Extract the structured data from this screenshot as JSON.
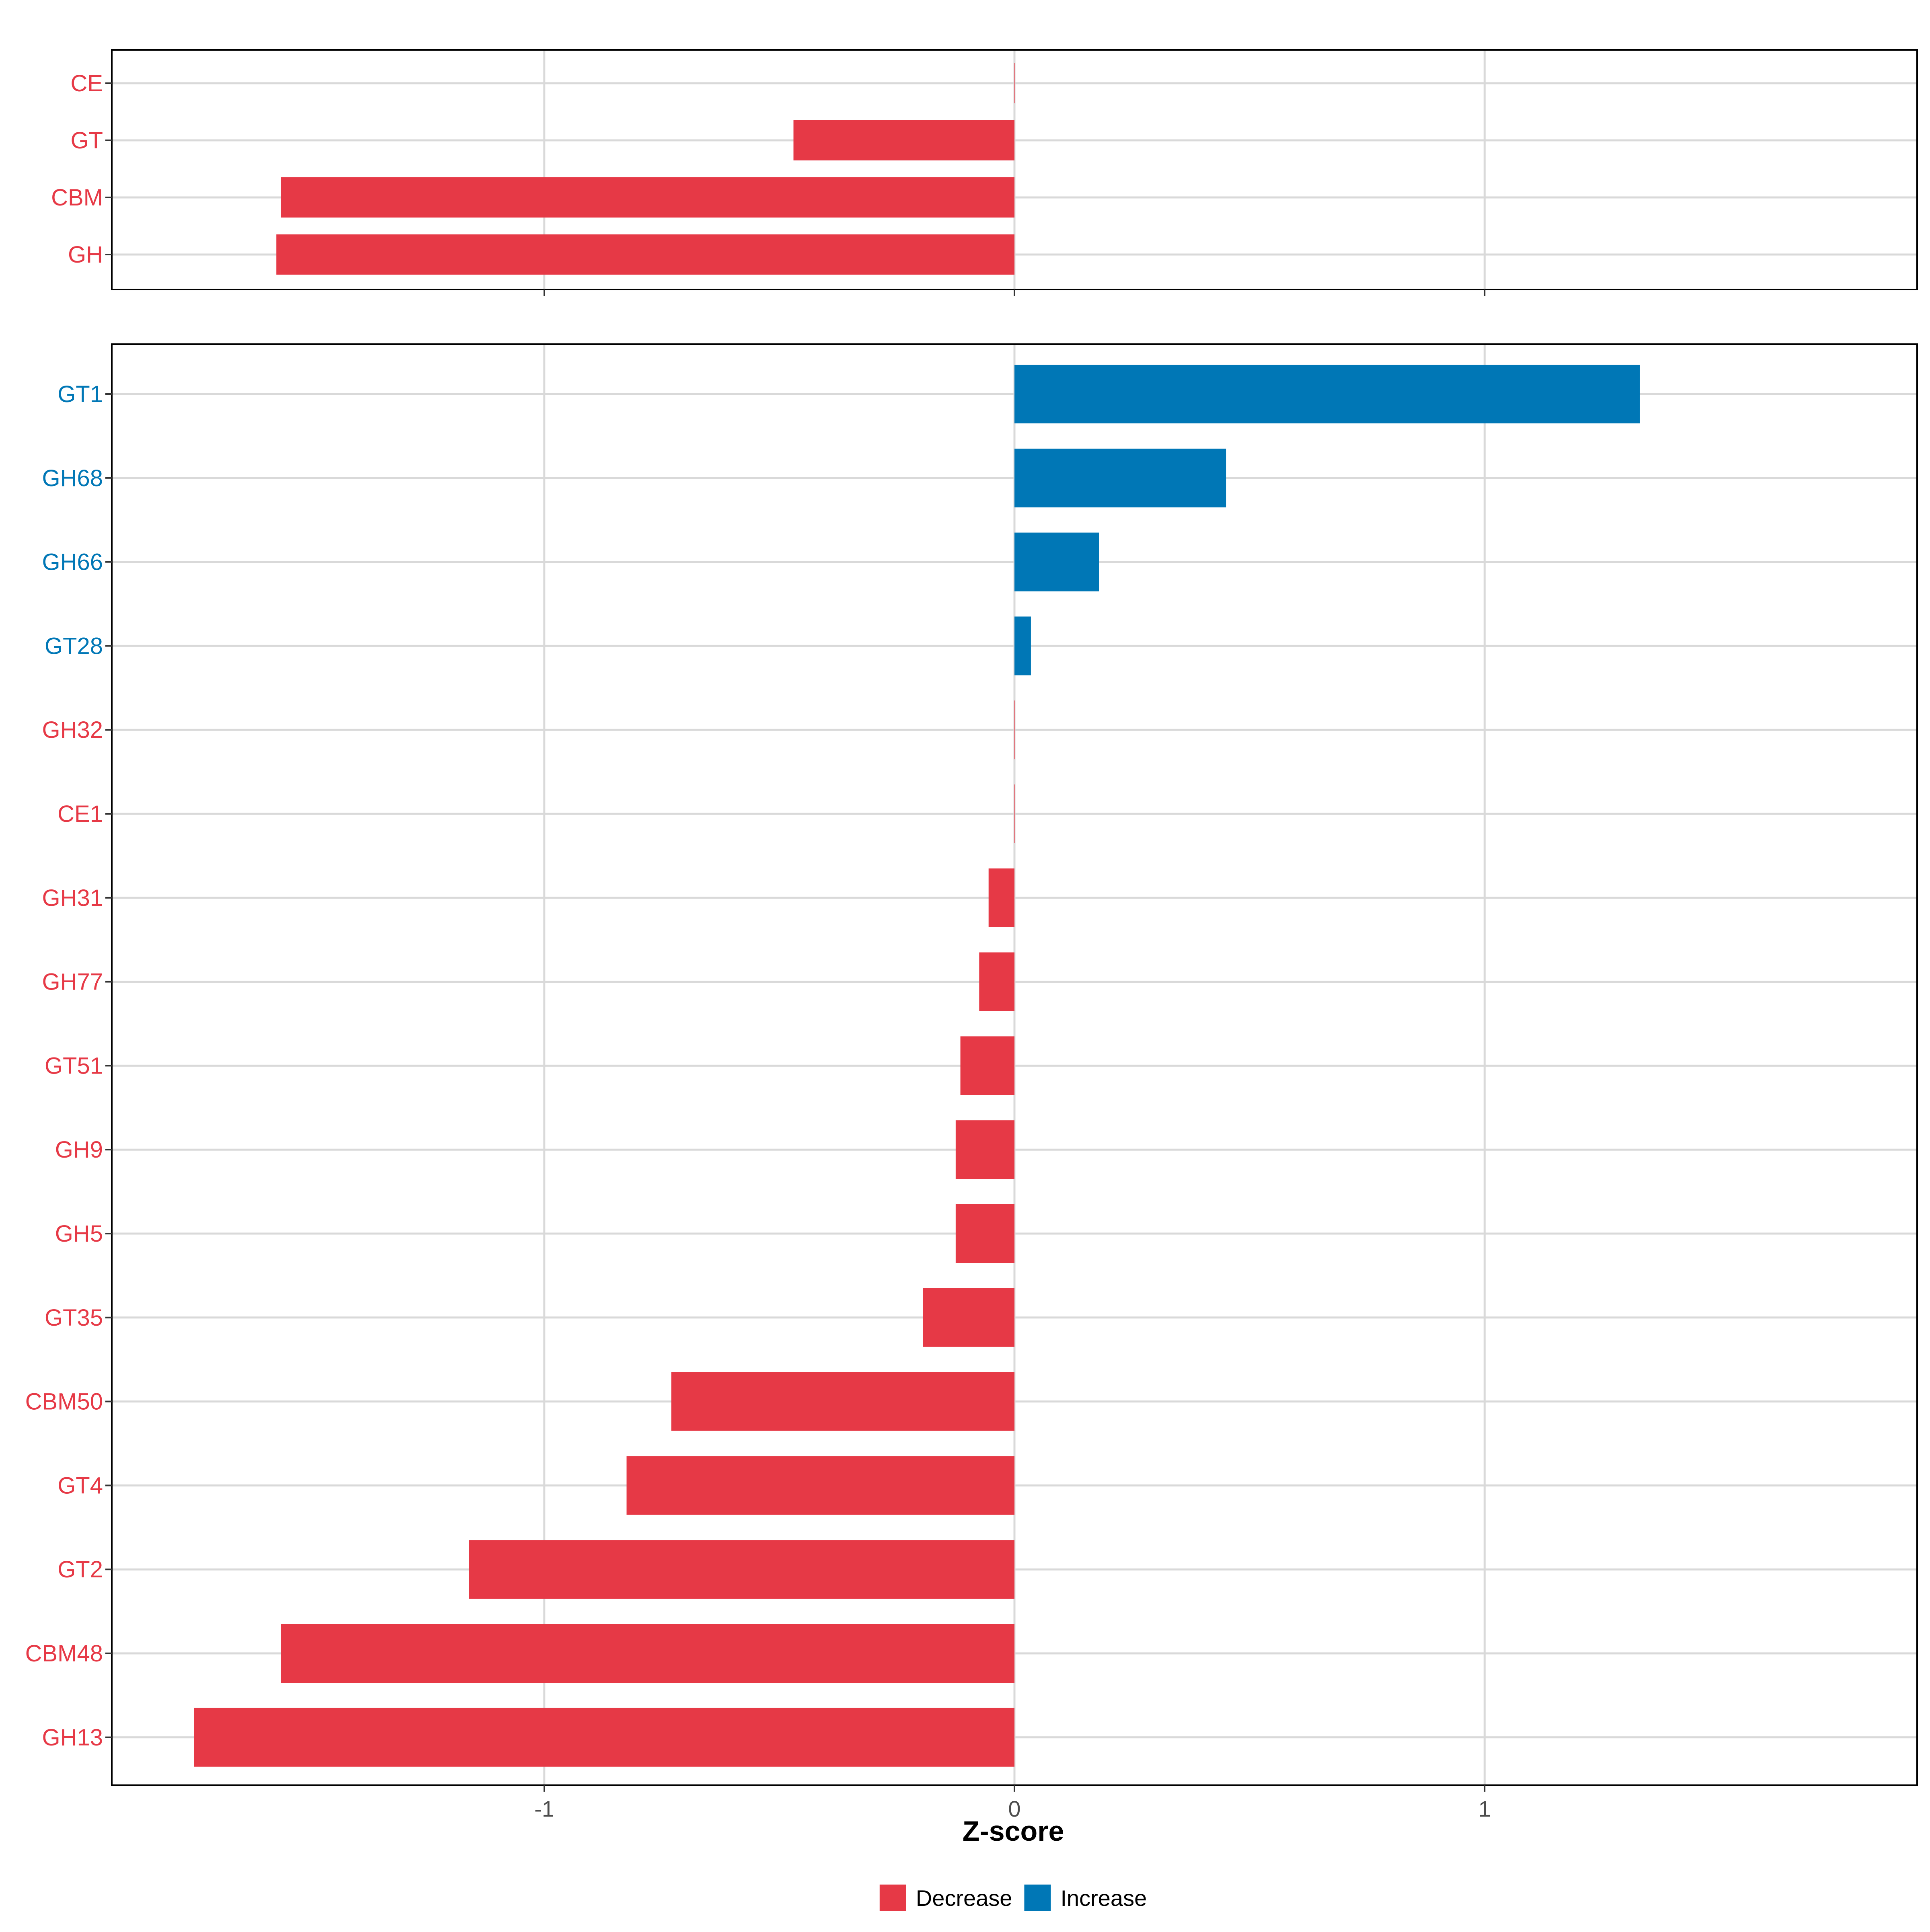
{
  "colors": {
    "decrease": "#E63946",
    "increase": "#0077B6",
    "grid": "#D9D9D9",
    "panel_border": "#000000",
    "tick_text": "#4D4D4D"
  },
  "chart_data": [
    {
      "type": "bar",
      "orientation": "horizontal",
      "panel": "top",
      "categories": [
        "CE",
        "GT",
        "CBM",
        "GH"
      ],
      "values": [
        0.0,
        -0.47,
        -1.56,
        -1.57
      ],
      "groups": [
        "Decrease",
        "Decrease",
        "Decrease",
        "Decrease"
      ],
      "xlim": [
        -1.92,
        1.92
      ],
      "xticks": [
        -1,
        0,
        1
      ],
      "xtick_labels": [
        "",
        "",
        ""
      ],
      "grid": true
    },
    {
      "type": "bar",
      "orientation": "horizontal",
      "panel": "bottom",
      "categories": [
        "GT1",
        "GH68",
        "GH66",
        "GT28",
        "GH32",
        "CE1",
        "GH31",
        "GH77",
        "GT51",
        "GH9",
        "GH5",
        "GT35",
        "CBM50",
        "GT4",
        "GT2",
        "CBM48",
        "GH13"
      ],
      "values": [
        1.33,
        0.45,
        0.18,
        0.035,
        0.0,
        0.0,
        -0.055,
        -0.075,
        -0.115,
        -0.125,
        -0.125,
        -0.195,
        -0.73,
        -0.825,
        -1.16,
        -1.56,
        -1.745
      ],
      "groups": [
        "Increase",
        "Increase",
        "Increase",
        "Increase",
        "Decrease",
        "Decrease",
        "Decrease",
        "Decrease",
        "Decrease",
        "Decrease",
        "Decrease",
        "Decrease",
        "Decrease",
        "Decrease",
        "Decrease",
        "Decrease",
        "Decrease"
      ],
      "xlim": [
        -1.92,
        1.92
      ],
      "xticks": [
        -1,
        0,
        1
      ],
      "xtick_labels": [
        "-1",
        "0",
        "1"
      ],
      "xlabel": "Z-score",
      "grid": true
    }
  ],
  "legend": {
    "position": "bottom",
    "items": [
      {
        "label": "Decrease",
        "color": "#E63946"
      },
      {
        "label": "Increase",
        "color": "#0077B6"
      }
    ]
  }
}
